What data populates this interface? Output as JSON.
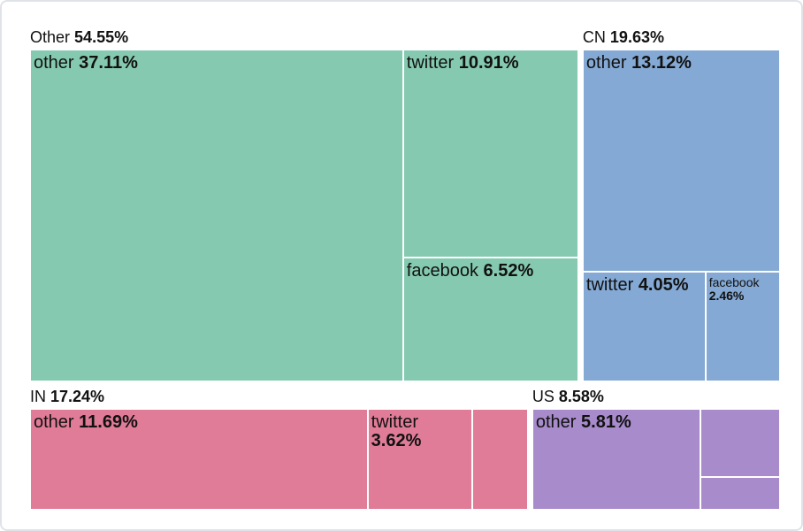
{
  "chart_data": {
    "type": "treemap",
    "series": [
      {
        "name": "Other",
        "value": 54.55,
        "value_label": "54.55%",
        "color": "#85c9b0",
        "categories": [
          "other",
          "twitter",
          "facebook"
        ],
        "values": [
          37.11,
          10.91,
          6.52
        ],
        "value_labels": [
          "37.11%",
          "10.91%",
          "6.52%"
        ]
      },
      {
        "name": "CN",
        "value": 19.63,
        "value_label": "19.63%",
        "color": "#84a9d4",
        "categories": [
          "other",
          "twitter",
          "facebook"
        ],
        "values": [
          13.12,
          4.05,
          2.46
        ],
        "value_labels": [
          "13.12%",
          "4.05%",
          "2.46%"
        ]
      },
      {
        "name": "IN",
        "value": 17.24,
        "value_label": "17.24%",
        "color": "#e07c98",
        "categories": [
          "other",
          "twitter",
          null
        ],
        "values": [
          11.69,
          3.62,
          1.93
        ],
        "value_labels": [
          "11.69%",
          "3.62%",
          null
        ]
      },
      {
        "name": "US",
        "value": 8.58,
        "value_label": "8.58%",
        "color": "#a78bcb",
        "categories": [
          "other",
          null,
          null
        ],
        "values": [
          5.81,
          1.86,
          0.91
        ],
        "value_labels": [
          "5.81%",
          null,
          null
        ]
      }
    ]
  }
}
